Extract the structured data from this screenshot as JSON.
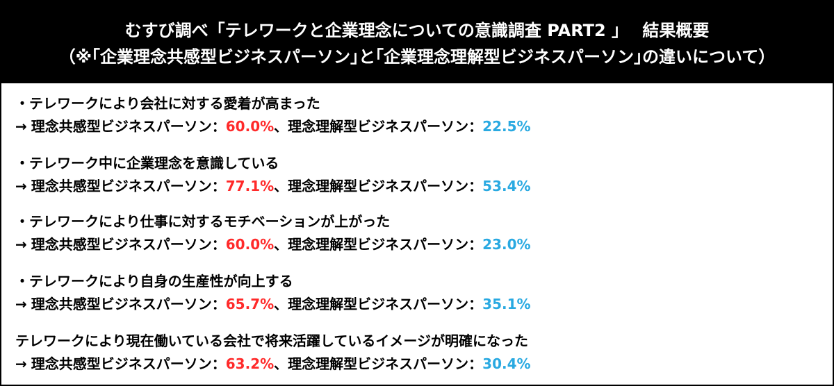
{
  "header": {
    "line1": "むすび調べ「テレワークと企業理念についての意識調査 PART2 」　 結果概要",
    "line2": "（※｢企業理念共感型ビジネスパーソン｣と｢企業理念理解型ビジネスパーソン｣の違いについて）"
  },
  "arrow": "→",
  "colors": {
    "header_bg": "#000000",
    "empathy_pct": "#ff2a2a",
    "understanding_pct": "#29a9e1"
  },
  "items": [
    {
      "title": "・テレワークにより会社に対する愛着が高まった",
      "empathy_label": "理念共感型ビジネスパーソン：",
      "empathy_value": "60.0%",
      "separator": "、",
      "understanding_label": "理念理解型ビジネスパーソン：",
      "understanding_value": "22.5%"
    },
    {
      "title": "・テレワーク中に企業理念を意識している",
      "empathy_label": "理念共感型ビジネスパーソン：",
      "empathy_value": "77.1%",
      "separator": "、",
      "understanding_label": "理念理解型ビジネスパーソン：",
      "understanding_value": "53.4%"
    },
    {
      "title": "・テレワークにより仕事に対するモチベーションが上がった",
      "empathy_label": "理念共感型ビジネスパーソン：",
      "empathy_value": "60.0%",
      "separator": "、",
      "understanding_label": "理念理解型ビジネスパーソン：",
      "understanding_value": "23.0%"
    },
    {
      "title": "・テレワークにより自身の生産性が向上する",
      "empathy_label": "理念共感型ビジネスパーソン：",
      "empathy_value": "65.7%",
      "separator": "、",
      "understanding_label": "理念理解型ビジネスパーソン：",
      "understanding_value": "35.1%"
    },
    {
      "title": "テレワークにより現在働いている会社で将来活躍しているイメージが明確になった",
      "empathy_label": "理念共感型ビジネスパーソン：",
      "empathy_value": "63.2%",
      "separator": "、",
      "understanding_label": "理念理解型ビジネスパーソン：",
      "understanding_value": "30.4%"
    }
  ]
}
